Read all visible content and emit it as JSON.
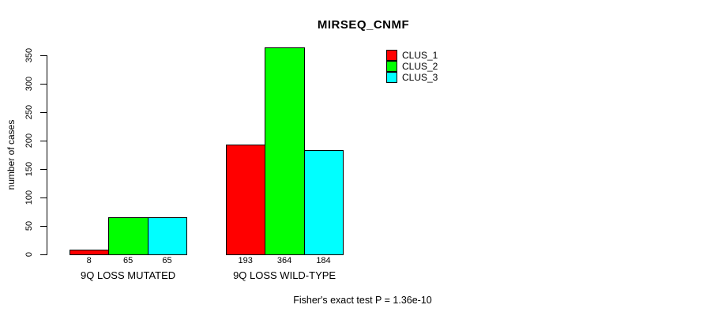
{
  "figure": {
    "title": "MIRSEQ_CNMF",
    "footer": "Fisher's exact test P = 1.36e-10"
  },
  "chart_data": {
    "type": "bar",
    "title": "MIRSEQ_CNMF",
    "xlabel": "",
    "ylabel": "number of cases",
    "ylim": [
      0,
      350
    ],
    "yticks": [
      0,
      50,
      100,
      150,
      200,
      250,
      300,
      350
    ],
    "categories": [
      "9Q LOSS MUTATED",
      "9Q LOSS WILD-TYPE"
    ],
    "series": [
      {
        "name": "CLUS_1",
        "color": "#ff0000",
        "values": [
          8,
          193
        ]
      },
      {
        "name": "CLUS_2",
        "color": "#00ff00",
        "values": [
          65,
          364
        ]
      },
      {
        "name": "CLUS_3",
        "color": "#00ffff",
        "values": [
          65,
          184
        ]
      }
    ],
    "bar_value_labels": true,
    "bar_border_color": "#000000",
    "grid": false,
    "legend_position": "top-right",
    "annotation": "Fisher's exact test P = 1.36e-10"
  }
}
